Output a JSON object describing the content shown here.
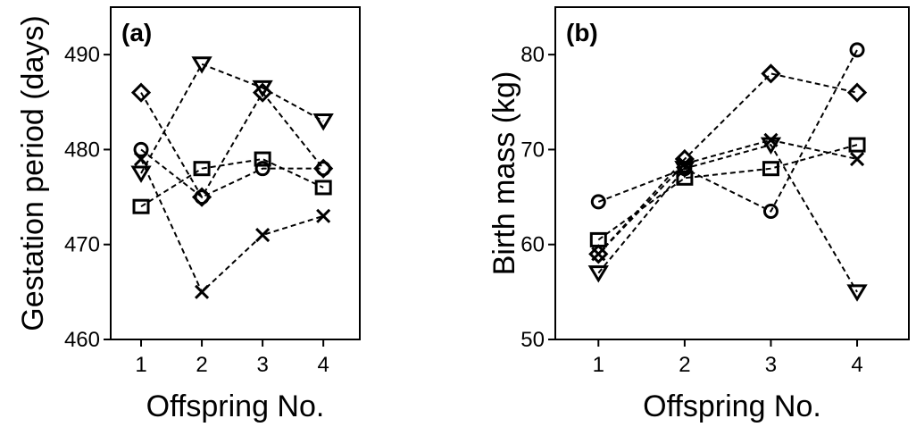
{
  "chart_data": [
    {
      "type": "line",
      "panel_label": "(a)",
      "xlabel": "Offspring No.",
      "ylabel": "Gestation period (days)",
      "x": [
        1,
        2,
        3,
        4
      ],
      "xlim": [
        0.5,
        4.6
      ],
      "ylim": [
        460,
        495
      ],
      "yticks": [
        460,
        470,
        480,
        490
      ],
      "series": [
        {
          "marker": "circle",
          "values": [
            480,
            475,
            478,
            478
          ]
        },
        {
          "marker": "diamond",
          "values": [
            486,
            475,
            486,
            478
          ]
        },
        {
          "marker": "triangle-down",
          "values": [
            477.5,
            489,
            486.5,
            483
          ]
        },
        {
          "marker": "square",
          "values": [
            474,
            478,
            479,
            476
          ]
        },
        {
          "marker": "x",
          "values": [
            479,
            465,
            471,
            473
          ]
        }
      ]
    },
    {
      "type": "line",
      "panel_label": "(b)",
      "xlabel": "Offspring No.",
      "ylabel": "Birth mass (kg)",
      "x": [
        1,
        2,
        3,
        4
      ],
      "xlim": [
        0.5,
        4.6
      ],
      "ylim": [
        50,
        85
      ],
      "yticks": [
        50,
        60,
        70,
        80
      ],
      "series": [
        {
          "marker": "circle",
          "values": [
            64.5,
            68,
            63.5,
            80.5
          ]
        },
        {
          "marker": "diamond",
          "values": [
            59,
            69,
            78,
            76
          ]
        },
        {
          "marker": "triangle-down",
          "values": [
            57,
            68,
            70.5,
            55
          ]
        },
        {
          "marker": "square",
          "values": [
            60.5,
            67,
            68,
            70.5
          ]
        },
        {
          "marker": "x",
          "values": [
            59,
            68.5,
            71,
            69
          ]
        }
      ]
    }
  ]
}
